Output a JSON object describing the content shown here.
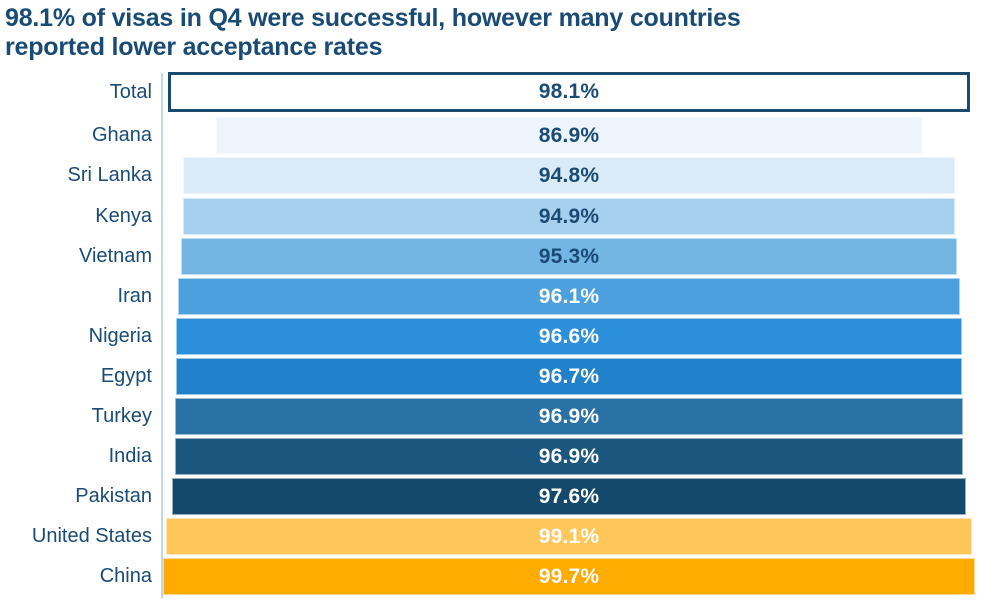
{
  "title": {
    "line1": "98.1% of visas in Q4 were successful, however many countries",
    "line2": "reported lower acceptance rates"
  },
  "styles": {
    "background": "#FFFFFF",
    "title_color": "#1A4B75",
    "category_label_color": "#1A4B75",
    "axis_line_color": "#BFD8EA",
    "total_bar_border": "#1B4A70"
  },
  "chart_data": {
    "type": "bar",
    "subtype": "horizontal-centered-funnel",
    "title": "98.1% of visas in Q4 were successful, however many countries reported lower acceptance rates",
    "xlabel": "",
    "ylabel": "",
    "axes_visible": false,
    "grid": false,
    "legend": "none",
    "value_unit": "%",
    "value_range_shown": [
      86.9,
      99.7
    ],
    "categories": [
      "Total",
      "Ghana",
      "Sri Lanka",
      "Kenya",
      "Vietnam",
      "Iran",
      "Nigeria",
      "Egypt",
      "Turkey",
      "India",
      "Pakistan",
      "United States",
      "China"
    ],
    "values": [
      98.1,
      86.9,
      94.8,
      94.9,
      95.3,
      96.1,
      96.6,
      96.7,
      96.9,
      96.9,
      97.6,
      99.1,
      99.7
    ],
    "bars": [
      {
        "category": "Total",
        "value": 98.1,
        "label": "98.1%",
        "fill": "#FFFFFF",
        "label_color": "#1A4B75",
        "outlined": true
      },
      {
        "category": "Ghana",
        "value": 86.9,
        "label": "86.9%",
        "fill": "#EDF4FB",
        "label_color": "#1A4B75",
        "outlined": false
      },
      {
        "category": "Sri Lanka",
        "value": 94.8,
        "label": "94.8%",
        "fill": "#DAEAF7",
        "label_color": "#1A4B75",
        "outlined": false
      },
      {
        "category": "Kenya",
        "value": 94.9,
        "label": "94.9%",
        "fill": "#A6D0EE",
        "label_color": "#1A4B75",
        "outlined": false
      },
      {
        "category": "Vietnam",
        "value": 95.3,
        "label": "95.3%",
        "fill": "#73B5E3",
        "label_color": "#1A4B75",
        "outlined": false
      },
      {
        "category": "Iran",
        "value": 96.1,
        "label": "96.1%",
        "fill": "#4CA0DD",
        "label_color": "#FFFFFF",
        "outlined": false
      },
      {
        "category": "Nigeria",
        "value": 96.6,
        "label": "96.6%",
        "fill": "#2B8FDB",
        "label_color": "#FFFFFF",
        "outlined": false
      },
      {
        "category": "Egypt",
        "value": 96.7,
        "label": "96.7%",
        "fill": "#2182CB",
        "label_color": "#FFFFFF",
        "outlined": false
      },
      {
        "category": "Turkey",
        "value": 96.9,
        "label": "96.9%",
        "fill": "#2A71A6",
        "label_color": "#FFFFFF",
        "outlined": false
      },
      {
        "category": "India",
        "value": 96.9,
        "label": "96.9%",
        "fill": "#1B567E",
        "label_color": "#FFFFFF",
        "outlined": false
      },
      {
        "category": "Pakistan",
        "value": 97.6,
        "label": "97.6%",
        "fill": "#14496C",
        "label_color": "#FFFFFF",
        "outlined": false
      },
      {
        "category": "United States",
        "value": 99.1,
        "label": "99.1%",
        "fill": "#FFC65A",
        "label_color": "#FFFFFF",
        "outlined": false
      },
      {
        "category": "China",
        "value": 99.7,
        "label": "99.7%",
        "fill": "#FFAB00",
        "label_color": "#FFFFFF",
        "outlined": false
      }
    ]
  }
}
